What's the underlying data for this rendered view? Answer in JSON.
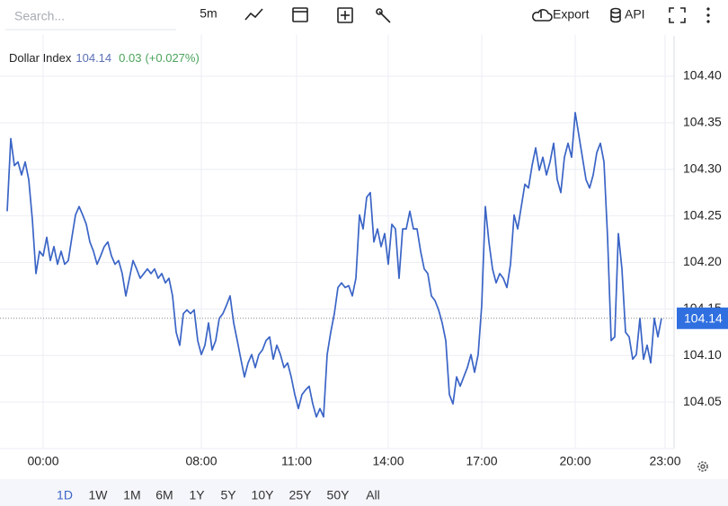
{
  "ui": {
    "search_placeholder": "Search...",
    "interval": "5m",
    "export": "Export",
    "api": "API",
    "ranges": [
      "1D",
      "1W",
      "1M",
      "6M",
      "1Y",
      "5Y",
      "10Y",
      "25Y",
      "50Y",
      "All"
    ]
  },
  "chart_data": {
    "type": "line",
    "title": "Dollar Index",
    "last_value": 104.14,
    "change": 0.03,
    "change_pct": "(+0.027%)",
    "color": "#3a64c6",
    "x": [
      0,
      1,
      2,
      3,
      4,
      5,
      6,
      7,
      8,
      9,
      10,
      11,
      12,
      13,
      14,
      15,
      16,
      17,
      18,
      19,
      20,
      21,
      22,
      23,
      24,
      25,
      26,
      27,
      28,
      29,
      30,
      31,
      32,
      33,
      34,
      35,
      36,
      37,
      38,
      39,
      40,
      41,
      42,
      43,
      44,
      45,
      46,
      47,
      48,
      49,
      50,
      51,
      52,
      53,
      54,
      55,
      56,
      57,
      58,
      59,
      60,
      61,
      62,
      63,
      64,
      65,
      66,
      67,
      68,
      69,
      70,
      71,
      72,
      73,
      74,
      75,
      76,
      77,
      78,
      79,
      80,
      81,
      82,
      83,
      84,
      85,
      86,
      87,
      88,
      89,
      90,
      91,
      92,
      93,
      94,
      95,
      96,
      97,
      98,
      99,
      100,
      101,
      102,
      103,
      104,
      105,
      106,
      107,
      108,
      109,
      110,
      111,
      112,
      113,
      114,
      115,
      116,
      117,
      118,
      119,
      120,
      121,
      122,
      123,
      124,
      125,
      126,
      127,
      128,
      129,
      130,
      131,
      132,
      133,
      134,
      135,
      136,
      137,
      138,
      139,
      140,
      141,
      142,
      143,
      144,
      145,
      146,
      147,
      148,
      149,
      150,
      151,
      152,
      153,
      154,
      155,
      156,
      157,
      158,
      159,
      160,
      161,
      162,
      163,
      164,
      165,
      166,
      167,
      168,
      169,
      170,
      171,
      172,
      173,
      174,
      175,
      176,
      177,
      178,
      179,
      180,
      181,
      182
    ],
    "values": [
      104.255,
      104.333,
      104.304,
      104.308,
      104.294,
      104.308,
      104.289,
      104.246,
      104.188,
      104.212,
      104.207,
      104.227,
      104.202,
      104.217,
      104.198,
      104.212,
      104.198,
      104.202,
      104.227,
      104.251,
      104.26,
      104.251,
      104.241,
      104.222,
      104.212,
      104.198,
      104.207,
      104.217,
      104.222,
      104.207,
      104.198,
      104.202,
      104.188,
      104.164,
      104.183,
      104.202,
      104.193,
      104.183,
      104.188,
      104.193,
      104.188,
      104.193,
      104.183,
      104.188,
      104.178,
      104.183,
      104.164,
      104.125,
      104.111,
      104.145,
      104.149,
      104.145,
      104.149,
      104.116,
      104.101,
      104.111,
      104.135,
      104.106,
      104.116,
      104.14,
      104.145,
      104.154,
      104.164,
      104.135,
      104.116,
      104.096,
      104.077,
      104.092,
      104.101,
      104.087,
      104.101,
      104.106,
      104.116,
      104.12,
      104.096,
      104.111,
      104.101,
      104.087,
      104.092,
      104.077,
      104.058,
      104.043,
      104.058,
      104.063,
      104.067,
      104.048,
      104.034,
      104.043,
      104.034,
      104.101,
      104.125,
      104.145,
      104.173,
      104.178,
      104.173,
      104.175,
      104.164,
      104.183,
      104.251,
      104.236,
      104.27,
      104.275,
      104.222,
      104.236,
      104.217,
      104.231,
      104.198,
      104.241,
      104.236,
      104.183,
      104.236,
      104.236,
      104.255,
      104.236,
      104.236,
      104.212,
      104.193,
      104.188,
      104.164,
      104.159,
      104.149,
      104.135,
      104.116,
      104.058,
      104.048,
      104.077,
      104.067,
      104.077,
      104.087,
      104.101,
      104.082,
      104.101,
      104.154,
      104.26,
      104.222,
      104.193,
      104.178,
      104.188,
      104.183,
      104.173,
      104.198,
      104.251,
      104.236,
      104.26,
      104.284,
      104.28,
      104.304,
      104.323,
      104.299,
      104.313,
      104.294,
      104.308,
      104.328,
      104.289,
      104.275,
      104.313,
      104.328,
      104.313,
      104.361,
      104.337,
      104.313,
      104.289,
      104.28,
      104.294,
      104.318,
      104.328,
      104.308,
      104.227,
      104.116,
      104.12,
      104.231,
      104.193,
      104.125,
      104.12,
      104.096,
      104.101,
      104.14,
      104.096,
      104.111,
      104.092,
      104.14,
      104.12,
      104.14
    ],
    "xlim": [
      -2,
      185.5
    ],
    "xticks": [
      {
        "value": 10,
        "label": "00:00"
      },
      {
        "value": 54,
        "label": "08:00"
      },
      {
        "value": 80.5,
        "label": "11:00"
      },
      {
        "value": 106,
        "label": "14:00"
      },
      {
        "value": 132,
        "label": "17:00"
      },
      {
        "value": 158,
        "label": "20:00"
      },
      {
        "value": 183,
        "label": "23:00"
      }
    ],
    "ylim": [
      104.0,
      104.44
    ],
    "yticks": [
      104.05,
      {
        "value": 104.1,
        "label": "104.10"
      },
      104.15,
      {
        "value": 104.2,
        "label": "104.20"
      },
      104.25,
      {
        "value": 104.3,
        "label": "104.30"
      },
      104.35,
      {
        "value": 104.4,
        "label": "104.40"
      }
    ],
    "grid": true
  }
}
